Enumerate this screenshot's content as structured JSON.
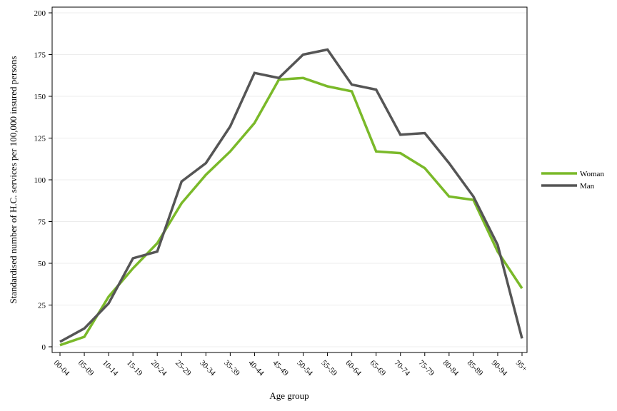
{
  "chart_data": {
    "type": "line",
    "xlabel": "Age group",
    "ylabel": "Standardised number of H.C. services per 100,000 insured persons",
    "ylim": [
      0,
      200
    ],
    "yticks": [
      0,
      25,
      50,
      75,
      100,
      125,
      150,
      175,
      200
    ],
    "grid": true,
    "legend_position": "right",
    "categories": [
      "00-04",
      "05-09",
      "10-14",
      "15-19",
      "20-24",
      "25-29",
      "30-34",
      "35-39",
      "40-44",
      "45-49",
      "50-54",
      "55-59",
      "60-64",
      "65-69",
      "70-74",
      "75-79",
      "80-84",
      "85-89",
      "90-94",
      "95+"
    ],
    "series": [
      {
        "name": "Woman",
        "color": "#7ab929",
        "values": [
          1,
          6,
          30,
          47,
          62,
          86,
          103,
          117,
          134,
          160,
          161,
          156,
          153,
          117,
          116,
          107,
          90,
          88,
          57,
          35
        ]
      },
      {
        "name": "Man",
        "color": "#555555",
        "values": [
          3,
          11,
          26,
          53,
          57,
          99,
          110,
          132,
          164,
          161,
          175,
          178,
          157,
          154,
          127,
          128,
          110,
          90,
          61,
          5
        ]
      }
    ]
  }
}
